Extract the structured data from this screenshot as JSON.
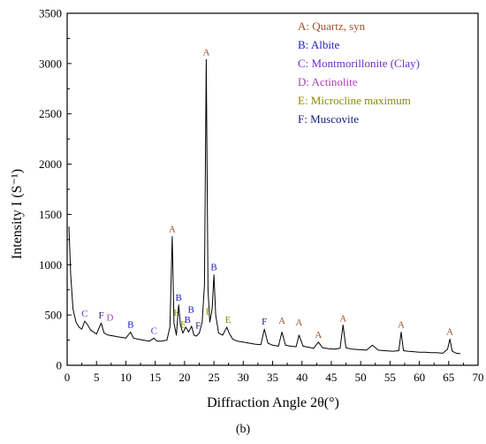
{
  "caption": "(b)",
  "chart_data": {
    "type": "line",
    "title": "",
    "xlabel": "Diffraction Angle  2θ(°)",
    "ylabel": "Intensity I (S⁻¹)",
    "xlim": [
      0,
      70
    ],
    "ylim": [
      0,
      3500
    ],
    "xticks": [
      0,
      5,
      10,
      15,
      20,
      25,
      30,
      35,
      40,
      45,
      50,
      55,
      60,
      65,
      70
    ],
    "yticks": [
      0,
      500,
      1000,
      1500,
      2000,
      2500,
      3000,
      3500
    ],
    "grid": false,
    "legend_position": "top-right",
    "legend": [
      {
        "key": "A",
        "label": "A: Quartz, syn",
        "color": "#a0522d"
      },
      {
        "key": "B",
        "label": "B: Albite",
        "color": "#1a1acc"
      },
      {
        "key": "C",
        "label": "C: Montmorillonite (Clay)",
        "color": "#6a2fd0"
      },
      {
        "key": "D",
        "label": "D: Actinolite",
        "color": "#b040c0"
      },
      {
        "key": "E",
        "label": "E: Microcline maximum",
        "color": "#8a8a00"
      },
      {
        "key": "F",
        "label": "F: Muscovite",
        "color": "#1a1a80"
      }
    ],
    "series": [
      {
        "x": [
          0.3,
          0.6,
          1.0,
          1.5,
          2.0,
          2.5,
          3.0,
          3.5,
          4.0,
          5.0,
          5.8,
          6.3,
          7.0,
          8.0,
          9.0,
          10.0,
          10.8,
          11.3,
          12.0,
          13.0,
          14.0,
          14.8,
          15.3,
          16.0,
          17.0,
          17.5,
          17.9,
          18.2,
          18.6,
          19.0,
          19.3,
          19.7,
          20.2,
          20.7,
          21.2,
          21.6,
          22.0,
          22.5,
          23.0,
          23.4,
          23.7,
          24.0,
          24.3,
          24.7,
          25.0,
          25.3,
          25.8,
          26.5,
          27.2,
          27.6,
          28.2,
          29.0,
          30.0,
          31.0,
          32.0,
          33.0,
          33.6,
          34.2,
          35.0,
          36.0,
          36.6,
          37.2,
          38.0,
          39.0,
          39.5,
          40.2,
          41.0,
          42.0,
          42.8,
          43.5,
          44.5,
          45.5,
          46.5,
          47.0,
          47.5,
          48.5,
          50.0,
          51.0,
          52.0,
          53.0,
          54.0,
          55.5,
          56.5,
          56.9,
          57.3,
          58.0,
          59.0,
          60.0,
          61.0,
          62.0,
          63.0,
          64.0,
          64.8,
          65.2,
          65.6,
          66.3,
          67.0
        ],
        "y": [
          1380,
          900,
          560,
          430,
          380,
          360,
          440,
          400,
          350,
          310,
          420,
          320,
          300,
          290,
          280,
          270,
          330,
          270,
          260,
          250,
          240,
          270,
          240,
          240,
          250,
          380,
          1280,
          420,
          300,
          600,
          400,
          320,
          380,
          330,
          390,
          300,
          290,
          320,
          430,
          800,
          3040,
          750,
          430,
          560,
          900,
          500,
          320,
          300,
          380,
          320,
          260,
          240,
          230,
          220,
          210,
          205,
          360,
          220,
          200,
          190,
          330,
          200,
          190,
          185,
          300,
          190,
          180,
          170,
          230,
          175,
          165,
          160,
          170,
          400,
          175,
          160,
          155,
          150,
          200,
          150,
          145,
          140,
          145,
          330,
          145,
          140,
          135,
          130,
          130,
          125,
          125,
          120,
          160,
          260,
          140,
          120,
          115
        ]
      }
    ],
    "annotations": [
      {
        "x": 3.0,
        "y": 440,
        "text": "C"
      },
      {
        "x": 5.8,
        "y": 420,
        "text": "F"
      },
      {
        "x": 7.3,
        "y": 400,
        "text": "D"
      },
      {
        "x": 10.8,
        "y": 330,
        "text": "B"
      },
      {
        "x": 14.8,
        "y": 270,
        "text": "C"
      },
      {
        "x": 17.9,
        "y": 1280,
        "text": "A"
      },
      {
        "x": 18.6,
        "y": 450,
        "text": "E"
      },
      {
        "x": 19.0,
        "y": 600,
        "text": "B"
      },
      {
        "x": 19.8,
        "y": 330,
        "text": "E"
      },
      {
        "x": 20.5,
        "y": 380,
        "text": "B"
      },
      {
        "x": 21.1,
        "y": 480,
        "text": "B"
      },
      {
        "x": 22.3,
        "y": 320,
        "text": "F"
      },
      {
        "x": 23.7,
        "y": 3040,
        "text": "A"
      },
      {
        "x": 24.1,
        "y": 460,
        "text": "E"
      },
      {
        "x": 25.0,
        "y": 900,
        "text": "B"
      },
      {
        "x": 27.4,
        "y": 380,
        "text": "E"
      },
      {
        "x": 33.6,
        "y": 360,
        "text": "F"
      },
      {
        "x": 36.6,
        "y": 370,
        "text": "A"
      },
      {
        "x": 39.5,
        "y": 350,
        "text": "A"
      },
      {
        "x": 42.8,
        "y": 230,
        "text": "A"
      },
      {
        "x": 47.0,
        "y": 390,
        "text": "A"
      },
      {
        "x": 56.9,
        "y": 330,
        "text": "A"
      },
      {
        "x": 65.2,
        "y": 260,
        "text": "A"
      }
    ]
  }
}
